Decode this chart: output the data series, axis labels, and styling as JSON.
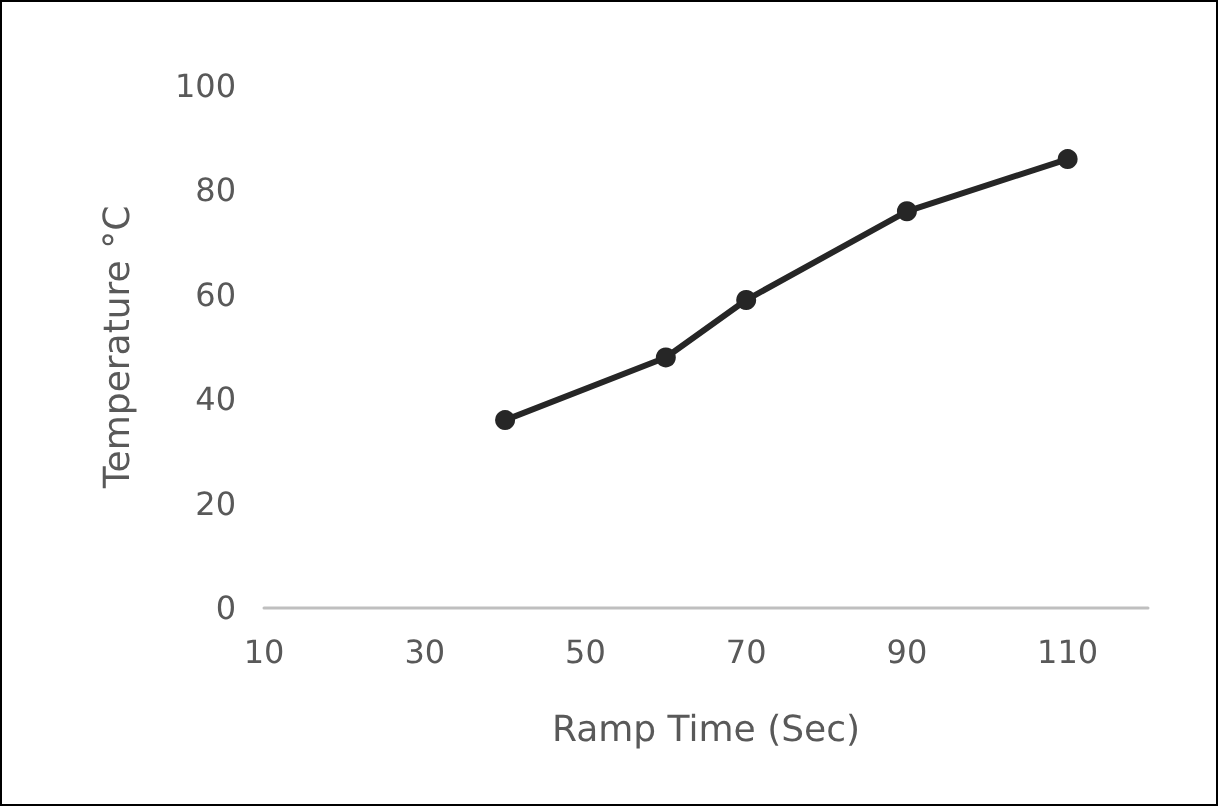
{
  "chart_data": {
    "type": "line",
    "xlabel": "Ramp Time (Sec)",
    "ylabel": "Temperature °C",
    "x": [
      40,
      60,
      70,
      90,
      110
    ],
    "series": [
      {
        "color": "#262626",
        "values": [
          36,
          48,
          59,
          76,
          86
        ]
      }
    ],
    "xlim": [
      10,
      120
    ],
    "xticks": [
      10,
      30,
      50,
      70,
      90,
      110
    ],
    "ylim": [
      0,
      100
    ],
    "yticks": [
      0,
      20,
      40,
      60,
      80,
      100
    ],
    "grid": false,
    "marker": "circle",
    "line_style": "solid"
  }
}
